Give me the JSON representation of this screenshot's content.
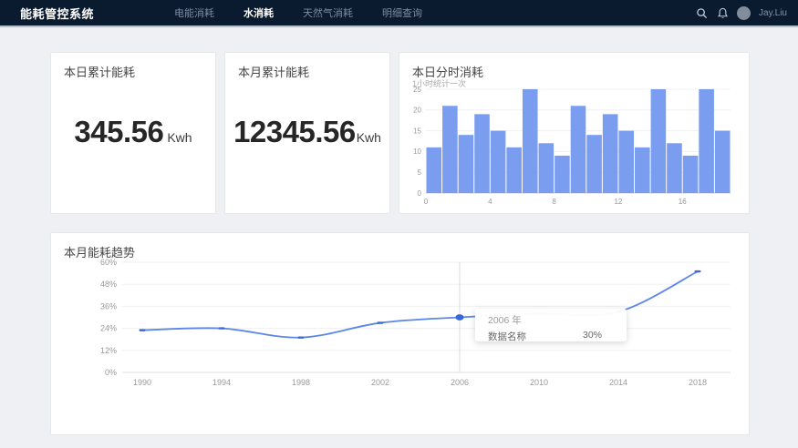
{
  "app": {
    "logo": "能耗管控系统",
    "nav": [
      {
        "label": "电能消耗"
      },
      {
        "label": "水消耗"
      },
      {
        "label": "天然气消耗"
      },
      {
        "label": "明细查询"
      }
    ],
    "active_nav": "水消耗",
    "user": "Jay.Liu"
  },
  "cards": {
    "daily": {
      "title": "本日累计能耗",
      "value": "345.56",
      "unit": "Kwh"
    },
    "monthly": {
      "title": "本月累计能耗",
      "value": "12345.56",
      "unit": "Kwh"
    },
    "hourly": {
      "title": "本日分时消耗",
      "subtitle": "1小时统计一次"
    },
    "trend": {
      "title": "本月能耗趋势"
    }
  },
  "tooltip": {
    "title": "2006 年",
    "label": "数据名称",
    "value": "30%"
  },
  "colors": {
    "navbar": "#0a1a2f",
    "page_bg": "#eef0f4",
    "bar": "#7b9df0",
    "line": "#5b87ea",
    "marker": "#3a67d6",
    "grid": "#f0f0f0",
    "axis": "#cccccc",
    "crosshair": "#dddddd",
    "axis_text": "#999999"
  },
  "chart_data": [
    {
      "type": "bar",
      "title": "本日分时消耗",
      "values": [
        11,
        21,
        14,
        19,
        15,
        11,
        25,
        12,
        9,
        21,
        14,
        19,
        15,
        11,
        25,
        12,
        9,
        25,
        15
      ],
      "ylim": [
        0,
        25
      ],
      "yticks": [
        0,
        5,
        10,
        15,
        20,
        25
      ],
      "xticks": [
        0,
        4,
        8,
        12,
        16
      ],
      "xlabel": "",
      "ylabel": ""
    },
    {
      "type": "line",
      "title": "本月能耗趋势",
      "x": [
        1990,
        1994,
        1998,
        2002,
        2006,
        2010,
        2014,
        2018
      ],
      "values": [
        23,
        24,
        19,
        27,
        30,
        32,
        33,
        55
      ],
      "ylim": [
        0,
        60
      ],
      "yticks": [
        0,
        12,
        24,
        36,
        48,
        60
      ],
      "ytick_suffix": "%",
      "hover_index": 4,
      "hover_value_label": "30%",
      "smooth": true
    }
  ]
}
